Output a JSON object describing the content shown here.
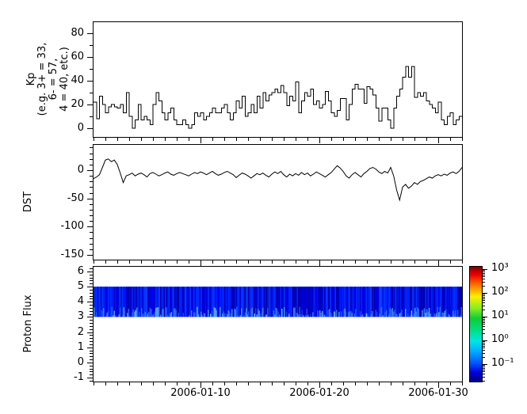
{
  "figure": {
    "background": "#ffffff",
    "x_axis": {
      "start_date": "2006-01-01",
      "end_date": "2006-02-01",
      "days_shown": 31,
      "minor_tick_every_days": 1,
      "major_ticks": [
        {
          "day": 9,
          "label": "2006-01-10"
        },
        {
          "day": 19,
          "label": "2006-01-20"
        },
        {
          "day": 29,
          "label": "2006-01-30"
        }
      ]
    }
  },
  "chart_data": [
    {
      "type": "line",
      "name": "kp-index",
      "style": "step",
      "line_color": "#000000",
      "ylabel_lines": [
        "Kp",
        "(e.g. 3+ = 33,",
        "6- = 57,",
        "4 = 40, etc.)"
      ],
      "ylim": [
        -7.33,
        89.33
      ],
      "yticks": [
        0,
        20,
        40,
        60,
        80
      ],
      "yminor_step": 10,
      "x_start": "2006-01-01",
      "sample_interval_hours": 6,
      "values": [
        22,
        8,
        27,
        20,
        13,
        18,
        20,
        18,
        17,
        20,
        13,
        30,
        10,
        0,
        7,
        20,
        7,
        10,
        7,
        3,
        20,
        30,
        23,
        13,
        7,
        13,
        17,
        7,
        3,
        3,
        7,
        3,
        0,
        3,
        13,
        10,
        13,
        7,
        10,
        13,
        17,
        13,
        13,
        17,
        20,
        13,
        7,
        13,
        23,
        17,
        27,
        10,
        13,
        20,
        13,
        27,
        17,
        30,
        23,
        28,
        30,
        33,
        30,
        36,
        30,
        19,
        27,
        23,
        39,
        13,
        23,
        30,
        27,
        33,
        20,
        23,
        17,
        20,
        31,
        23,
        13,
        10,
        15,
        25,
        25,
        7,
        20,
        33,
        37,
        33,
        33,
        21,
        35,
        33,
        28,
        17,
        6,
        17,
        17,
        7,
        0,
        17,
        27,
        33,
        43,
        52,
        43,
        52,
        26,
        30,
        27,
        30,
        23,
        20,
        17,
        13,
        22,
        7,
        3,
        10,
        13,
        3,
        7,
        10
      ]
    },
    {
      "type": "line",
      "name": "dst-index",
      "style": "line",
      "line_color": "#000000",
      "ylabel": "DST",
      "ylim": [
        -158.4,
        44.9
      ],
      "yticks": [
        0,
        -50,
        -100,
        -150
      ],
      "yminor_step": 10,
      "x_start": "2006-01-01",
      "sample_interval_hours": 6,
      "values": [
        -15,
        -12,
        -8,
        5,
        18,
        20,
        15,
        18,
        10,
        -5,
        -22,
        -10,
        -8,
        -5,
        -10,
        -7,
        -5,
        -8,
        -12,
        -6,
        -4,
        -7,
        -10,
        -8,
        -5,
        -3,
        -7,
        -9,
        -6,
        -4,
        -6,
        -8,
        -10,
        -7,
        -4,
        -6,
        -3,
        -5,
        -8,
        -5,
        -2,
        -6,
        -9,
        -7,
        -4,
        -2,
        -5,
        -8,
        -13,
        -9,
        -5,
        -7,
        -10,
        -14,
        -10,
        -6,
        -8,
        -5,
        -9,
        -12,
        -7,
        -3,
        -6,
        -2,
        -8,
        -12,
        -7,
        -10,
        -6,
        -9,
        -4,
        -8,
        -5,
        -10,
        -7,
        -3,
        -6,
        -9,
        -12,
        -8,
        -4,
        2,
        8,
        4,
        -2,
        -10,
        -14,
        -8,
        -4,
        -8,
        -12,
        -6,
        -2,
        3,
        5,
        2,
        -3,
        -6,
        -2,
        -5,
        5,
        -10,
        -35,
        -53,
        -30,
        -25,
        -32,
        -28,
        -22,
        -25,
        -20,
        -18,
        -15,
        -12,
        -14,
        -10,
        -8,
        -10,
        -7,
        -9,
        -5,
        -3,
        -6,
        -2,
        5
      ]
    },
    {
      "type": "heatmap",
      "name": "proton-flux",
      "ylabel": "Proton Flux",
      "ylim": [
        -1.26,
        6.31
      ],
      "yticks": [
        -1,
        0,
        1,
        2,
        3,
        4,
        5,
        6
      ],
      "yminor_step": 0.2,
      "band": {
        "y_from": 3,
        "y_to": 5
      },
      "palette": [
        "#0000aa",
        "#0000cc",
        "#0011e6",
        "#0022ff",
        "#0033ff",
        "#0000ee"
      ],
      "light_palette": [
        "#2255ff",
        "#3377ff",
        "#4499ff",
        "#66bbff"
      ],
      "colorbar": {
        "scale": "log",
        "tick_labels": [
          "10³",
          "10²",
          "10¹",
          "10⁰",
          "10⁻¹"
        ],
        "colors_top_to_bottom": [
          "#800000",
          "#ff0000",
          "#ff8000",
          "#ffee00",
          "#11cc33",
          "#00e6e6",
          "#0055ff",
          "#000080"
        ]
      }
    }
  ]
}
